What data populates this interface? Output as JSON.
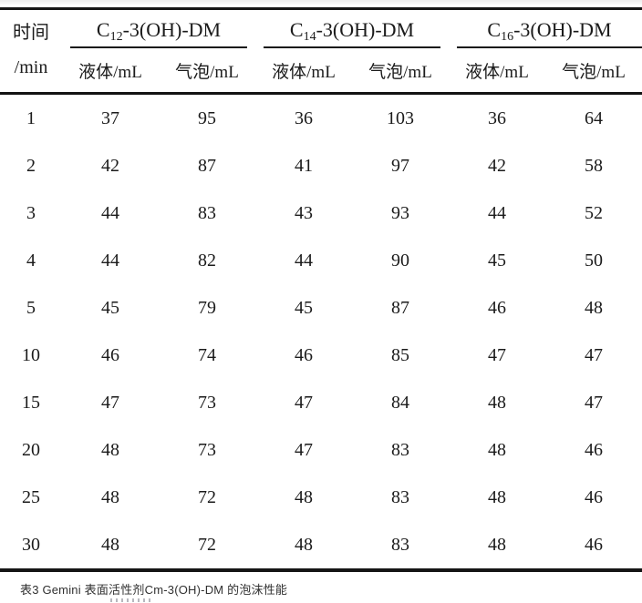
{
  "table": {
    "time_header": {
      "line1": "时间",
      "line2": "/min"
    },
    "groups": [
      {
        "prefix": "C",
        "subscript": "12",
        "suffix": "-3(OH)-DM"
      },
      {
        "prefix": "C",
        "subscript": "14",
        "suffix": "-3(OH)-DM"
      },
      {
        "prefix": "C",
        "subscript": "16",
        "suffix": "-3(OH)-DM"
      }
    ],
    "sub_headers": [
      "液体/mL",
      "气泡/mL",
      "液体/mL",
      "气泡/mL",
      "液体/mL",
      "气泡/mL"
    ],
    "rows": [
      {
        "time": "1",
        "values": [
          "37",
          "95",
          "36",
          "103",
          "36",
          "64"
        ]
      },
      {
        "time": "2",
        "values": [
          "42",
          "87",
          "41",
          "97",
          "42",
          "58"
        ]
      },
      {
        "time": "3",
        "values": [
          "44",
          "83",
          "43",
          "93",
          "44",
          "52"
        ]
      },
      {
        "time": "4",
        "values": [
          "44",
          "82",
          "44",
          "90",
          "45",
          "50"
        ]
      },
      {
        "time": "5",
        "values": [
          "45",
          "79",
          "45",
          "87",
          "46",
          "48"
        ]
      },
      {
        "time": "10",
        "values": [
          "46",
          "74",
          "46",
          "85",
          "47",
          "47"
        ]
      },
      {
        "time": "15",
        "values": [
          "47",
          "73",
          "47",
          "84",
          "48",
          "47"
        ]
      },
      {
        "time": "20",
        "values": [
          "48",
          "73",
          "47",
          "83",
          "48",
          "46"
        ]
      },
      {
        "time": "25",
        "values": [
          "48",
          "72",
          "48",
          "83",
          "48",
          "46"
        ]
      },
      {
        "time": "30",
        "values": [
          "48",
          "72",
          "48",
          "83",
          "48",
          "46"
        ]
      }
    ]
  },
  "caption": {
    "text": "表3 Gemini 表面活性剂Cm-3(OH)-DM 的泡沫性能"
  },
  "colors": {
    "rule": "#151515",
    "text": "#1b1b1b",
    "caption_text": "#303030",
    "background": "#ffffff"
  }
}
